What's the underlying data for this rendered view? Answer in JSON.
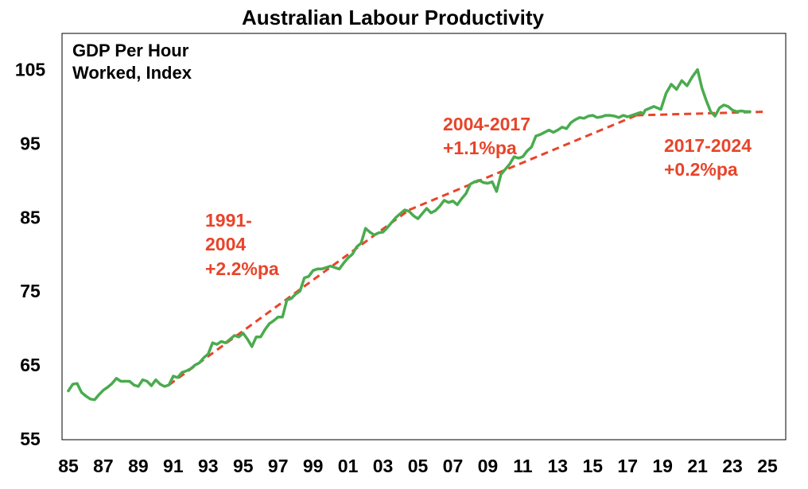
{
  "chart_data": {
    "type": "line",
    "title": "Australian Labour Productivity",
    "unit_label": [
      "GDP Per Hour",
      "Worked, Index"
    ],
    "xlim": [
      1985,
      2025.5
    ],
    "ylim": [
      55,
      110
    ],
    "yticks": [
      55,
      65,
      75,
      85,
      95,
      105
    ],
    "xtick_values": [
      1985,
      1987,
      1989,
      1991,
      1993,
      1995,
      1997,
      1999,
      2001,
      2003,
      2005,
      2007,
      2009,
      2011,
      2013,
      2015,
      2017,
      2019,
      2021,
      2023,
      2025
    ],
    "xtick_labels": [
      "85",
      "87",
      "89",
      "91",
      "93",
      "95",
      "97",
      "99",
      "01",
      "03",
      "05",
      "07",
      "09",
      "11",
      "13",
      "15",
      "17",
      "19",
      "21",
      "23",
      "25"
    ],
    "grid": false,
    "line_color": "#4aab4e",
    "trend_color": "#e8442a",
    "series": [
      {
        "values": [
          [
            1985.0,
            61.5
          ],
          [
            1985.25,
            62.4
          ],
          [
            1985.5,
            62.5
          ],
          [
            1985.75,
            61.3
          ],
          [
            1986.0,
            60.8
          ],
          [
            1986.25,
            60.4
          ],
          [
            1986.5,
            60.3
          ],
          [
            1986.75,
            61.0
          ],
          [
            1987.0,
            61.6
          ],
          [
            1987.25,
            62.0
          ],
          [
            1987.5,
            62.5
          ],
          [
            1987.75,
            63.2
          ],
          [
            1988.0,
            62.8
          ],
          [
            1988.25,
            62.8
          ],
          [
            1988.5,
            62.8
          ],
          [
            1988.75,
            62.3
          ],
          [
            1989.0,
            62.1
          ],
          [
            1989.25,
            63.0
          ],
          [
            1989.5,
            62.8
          ],
          [
            1989.75,
            62.2
          ],
          [
            1990.0,
            63.0
          ],
          [
            1990.25,
            62.4
          ],
          [
            1990.5,
            62.1
          ],
          [
            1990.75,
            62.3
          ],
          [
            1991.0,
            63.5
          ],
          [
            1991.25,
            63.3
          ],
          [
            1991.5,
            64.0
          ],
          [
            1991.75,
            64.2
          ],
          [
            1992.0,
            64.5
          ],
          [
            1992.25,
            65.0
          ],
          [
            1992.5,
            65.3
          ],
          [
            1992.75,
            66.0
          ],
          [
            1993.0,
            66.5
          ],
          [
            1993.25,
            68.0
          ],
          [
            1993.5,
            67.8
          ],
          [
            1993.75,
            68.2
          ],
          [
            1994.0,
            68.0
          ],
          [
            1994.25,
            68.5
          ],
          [
            1994.5,
            69.0
          ],
          [
            1994.75,
            68.8
          ],
          [
            1995.0,
            69.3
          ],
          [
            1995.25,
            68.5
          ],
          [
            1995.5,
            67.5
          ],
          [
            1995.75,
            68.8
          ],
          [
            1996.0,
            68.8
          ],
          [
            1996.25,
            69.8
          ],
          [
            1996.5,
            70.6
          ],
          [
            1996.75,
            71.0
          ],
          [
            1997.0,
            71.5
          ],
          [
            1997.25,
            71.5
          ],
          [
            1997.5,
            73.8
          ],
          [
            1997.75,
            74.0
          ],
          [
            1998.0,
            74.6
          ],
          [
            1998.25,
            75.0
          ],
          [
            1998.5,
            76.8
          ],
          [
            1998.75,
            77.0
          ],
          [
            1999.0,
            77.8
          ],
          [
            1999.25,
            78.0
          ],
          [
            1999.5,
            78.0
          ],
          [
            1999.75,
            78.2
          ],
          [
            2000.0,
            78.4
          ],
          [
            2000.25,
            78.2
          ],
          [
            2000.5,
            78.0
          ],
          [
            2000.75,
            78.8
          ],
          [
            2001.0,
            79.5
          ],
          [
            2001.25,
            80.0
          ],
          [
            2001.5,
            81.0
          ],
          [
            2001.75,
            81.5
          ],
          [
            2002.0,
            83.5
          ],
          [
            2002.25,
            83.0
          ],
          [
            2002.5,
            82.6
          ],
          [
            2002.75,
            82.9
          ],
          [
            2003.0,
            83.0
          ],
          [
            2003.25,
            83.6
          ],
          [
            2003.5,
            84.3
          ],
          [
            2003.75,
            85.0
          ],
          [
            2004.0,
            85.5
          ],
          [
            2004.25,
            86.0
          ],
          [
            2004.5,
            85.8
          ],
          [
            2004.75,
            85.2
          ],
          [
            2005.0,
            84.8
          ],
          [
            2005.25,
            85.5
          ],
          [
            2005.5,
            86.2
          ],
          [
            2005.75,
            85.6
          ],
          [
            2006.0,
            85.9
          ],
          [
            2006.25,
            86.5
          ],
          [
            2006.5,
            87.3
          ],
          [
            2006.75,
            87.0
          ],
          [
            2007.0,
            87.2
          ],
          [
            2007.25,
            86.7
          ],
          [
            2007.5,
            87.5
          ],
          [
            2007.75,
            88.2
          ],
          [
            2008.0,
            89.5
          ],
          [
            2008.25,
            89.8
          ],
          [
            2008.5,
            90.0
          ],
          [
            2008.75,
            89.7
          ],
          [
            2009.0,
            89.6
          ],
          [
            2009.25,
            89.8
          ],
          [
            2009.5,
            88.5
          ],
          [
            2009.75,
            90.8
          ],
          [
            2010.0,
            91.5
          ],
          [
            2010.25,
            92.2
          ],
          [
            2010.5,
            93.2
          ],
          [
            2010.75,
            93.0
          ],
          [
            2011.0,
            93.2
          ],
          [
            2011.25,
            94.0
          ],
          [
            2011.5,
            94.5
          ],
          [
            2011.75,
            96.0
          ],
          [
            2012.0,
            96.2
          ],
          [
            2012.25,
            96.5
          ],
          [
            2012.5,
            96.8
          ],
          [
            2012.75,
            96.5
          ],
          [
            2013.0,
            96.8
          ],
          [
            2013.25,
            97.2
          ],
          [
            2013.5,
            97.0
          ],
          [
            2013.75,
            97.8
          ],
          [
            2014.0,
            98.2
          ],
          [
            2014.25,
            98.5
          ],
          [
            2014.5,
            98.4
          ],
          [
            2014.75,
            98.7
          ],
          [
            2015.0,
            98.8
          ],
          [
            2015.25,
            98.5
          ],
          [
            2015.5,
            98.6
          ],
          [
            2015.75,
            98.8
          ],
          [
            2016.0,
            98.8
          ],
          [
            2016.25,
            98.7
          ],
          [
            2016.5,
            98.5
          ],
          [
            2016.75,
            98.8
          ],
          [
            2017.0,
            98.6
          ],
          [
            2017.25,
            98.8
          ],
          [
            2017.5,
            99.0
          ],
          [
            2017.75,
            99.2
          ],
          [
            2017.9,
            99.0
          ],
          [
            2018.0,
            99.5
          ],
          [
            2018.5,
            100.0
          ],
          [
            2018.9,
            99.6
          ],
          [
            2019.2,
            101.8
          ],
          [
            2019.5,
            103.0
          ],
          [
            2019.8,
            102.3
          ],
          [
            2020.1,
            103.5
          ],
          [
            2020.4,
            102.8
          ],
          [
            2020.7,
            104.0
          ],
          [
            2021.0,
            105.0
          ],
          [
            2021.25,
            102.5
          ],
          [
            2021.5,
            100.8
          ],
          [
            2021.75,
            99.3
          ],
          [
            2022.0,
            98.7
          ],
          [
            2022.25,
            99.8
          ],
          [
            2022.5,
            100.2
          ],
          [
            2022.75,
            100.0
          ],
          [
            2023.0,
            99.5
          ],
          [
            2023.25,
            99.3
          ],
          [
            2023.5,
            99.4
          ],
          [
            2023.75,
            99.3
          ],
          [
            2024.0,
            99.3
          ]
        ]
      }
    ],
    "trend_lines": [
      {
        "label": [
          "1991-",
          "2004",
          "+2.2%pa"
        ],
        "from": [
          1990.75,
          62.3
        ],
        "to": [
          2004.5,
          86.0
        ]
      },
      {
        "label": [
          "2004-2017",
          "+1.1%pa"
        ],
        "from": [
          2004.5,
          86.0
        ],
        "to": [
          2017.5,
          98.8
        ]
      },
      {
        "label": [
          "2017-2024",
          "+0.2%pa"
        ],
        "from": [
          2017.5,
          98.8
        ],
        "to": [
          2025.0,
          99.3
        ]
      }
    ]
  }
}
